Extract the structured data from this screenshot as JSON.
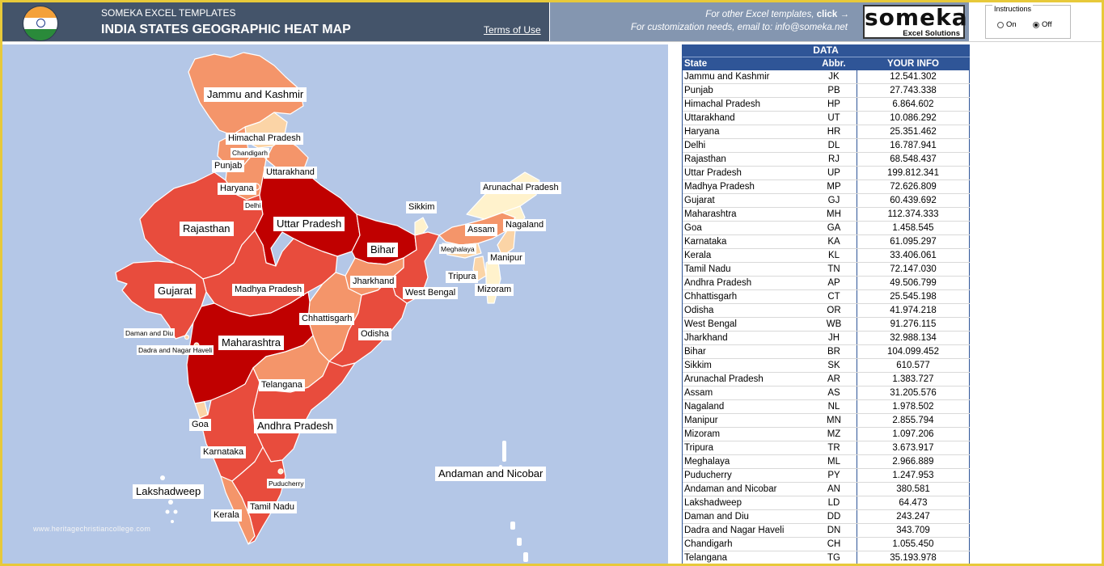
{
  "header": {
    "brand": "SOMEKA EXCEL TEMPLATES",
    "title": "INDIA STATES GEOGRAPHIC HEAT MAP",
    "terms": "Terms of Use",
    "other_prefix": "For other Excel templates, ",
    "other_link": "click →",
    "customization": "For customization needs, email to: info@someka.net",
    "logo_word": "someka",
    "logo_sub": "Excel Solutions"
  },
  "instructions": {
    "caption": "Instructions",
    "on_label": "On",
    "off_label": "Off",
    "selected": "Off"
  },
  "colors": {
    "header_dark": "#44546a",
    "header_light": "#8496b0",
    "ocean": "#b4c7e7",
    "table_header": "#2f5597",
    "heat_lowest": "#fff2cc",
    "heat_low": "#f8cbad",
    "heat_mid": "#f4956a",
    "heat_high": "#e84c3d",
    "heat_highest": "#c00000"
  },
  "map_labels": {
    "jk": "Jammu and Kashmir",
    "hp": "Himachal Pradesh",
    "ch": "Chandigarh",
    "pb": "Punjab",
    "ut": "Uttarakhand",
    "hr": "Haryana",
    "dl": "Delhi",
    "rj": "Rajasthan",
    "up": "Uttar Pradesh",
    "br": "Bihar",
    "sk": "Sikkim",
    "ar": "Arunachal Pradesh",
    "nl": "Nagaland",
    "as": "Assam",
    "ml": "Meghalaya",
    "mn": "Manipur",
    "tr": "Tripura",
    "mz": "Mizoram",
    "jh": "Jharkhand",
    "wb": "West Bengal",
    "gj": "Gujarat",
    "mp": "Madhya Pradesh",
    "ct": "Chhattisgarh",
    "or": "Odisha",
    "dd": "Daman and Diu",
    "dn": "Dadra and Nagar Haveli",
    "mh": "Maharashtra",
    "tg": "Telangana",
    "ga": "Goa",
    "ap": "Andhra Pradesh",
    "ka": "Karnataka",
    "an": "Andaman and Nicobar",
    "ld": "Lakshadweep",
    "py": "Puducherry",
    "kl": "Kerala",
    "tn": "Tamil Nadu"
  },
  "watermark": "www.heritagechristiancollege.com",
  "table": {
    "title": "DATA",
    "headers": [
      "State",
      "Abbr.",
      "YOUR INFO"
    ],
    "rows": [
      [
        "Jammu and Kashmir",
        "JK",
        "12.541.302"
      ],
      [
        "Punjab",
        "PB",
        "27.743.338"
      ],
      [
        "Himachal Pradesh",
        "HP",
        "6.864.602"
      ],
      [
        "Uttarakhand",
        "UT",
        "10.086.292"
      ],
      [
        "Haryana",
        "HR",
        "25.351.462"
      ],
      [
        "Delhi",
        "DL",
        "16.787.941"
      ],
      [
        "Rajasthan",
        "RJ",
        "68.548.437"
      ],
      [
        "Uttar Pradesh",
        "UP",
        "199.812.341"
      ],
      [
        "Madhya Pradesh",
        "MP",
        "72.626.809"
      ],
      [
        "Gujarat",
        "GJ",
        "60.439.692"
      ],
      [
        "Maharashtra",
        "MH",
        "112.374.333"
      ],
      [
        "Goa",
        "GA",
        "1.458.545"
      ],
      [
        "Karnataka",
        "KA",
        "61.095.297"
      ],
      [
        "Kerala",
        "KL",
        "33.406.061"
      ],
      [
        "Tamil Nadu",
        "TN",
        "72.147.030"
      ],
      [
        "Andhra Pradesh",
        "AP",
        "49.506.799"
      ],
      [
        "Chhattisgarh",
        "CT",
        "25.545.198"
      ],
      [
        "Odisha",
        "OR",
        "41.974.218"
      ],
      [
        "West Bengal",
        "WB",
        "91.276.115"
      ],
      [
        "Jharkhand",
        "JH",
        "32.988.134"
      ],
      [
        "Bihar",
        "BR",
        "104.099.452"
      ],
      [
        "Sikkim",
        "SK",
        "610.577"
      ],
      [
        "Arunachal Pradesh",
        "AR",
        "1.383.727"
      ],
      [
        "Assam",
        "AS",
        "31.205.576"
      ],
      [
        "Nagaland",
        "NL",
        "1.978.502"
      ],
      [
        "Manipur",
        "MN",
        "2.855.794"
      ],
      [
        "Mizoram",
        "MZ",
        "1.097.206"
      ],
      [
        "Tripura",
        "TR",
        "3.673.917"
      ],
      [
        "Meghalaya",
        "ML",
        "2.966.889"
      ],
      [
        "Puducherry",
        "PY",
        "1.247.953"
      ],
      [
        "Andaman and Nicobar",
        "AN",
        "380.581"
      ],
      [
        "Lakshadweep",
        "LD",
        "64.473"
      ],
      [
        "Daman and Diu",
        "DD",
        "243.247"
      ],
      [
        "Dadra and Nagar Haveli",
        "DN",
        "343.709"
      ],
      [
        "Chandigarh",
        "CH",
        "1.055.450"
      ],
      [
        "Telangana",
        "TG",
        "35.193.978"
      ]
    ]
  }
}
